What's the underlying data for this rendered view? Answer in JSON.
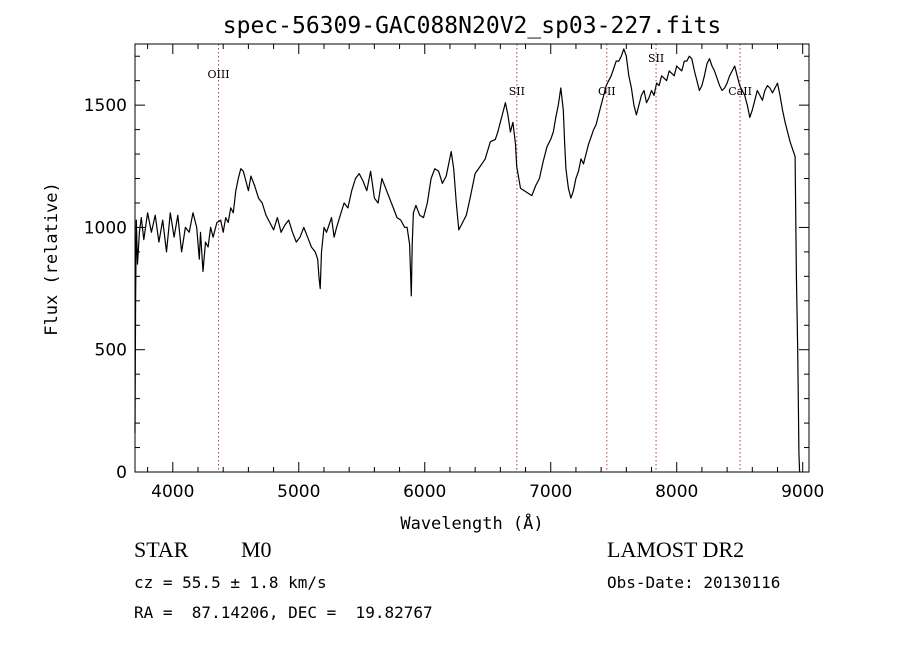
{
  "chart_data": {
    "type": "line",
    "title": "spec-56309-GAC088N20V2_sp03-227.fits",
    "xlabel": "Wavelength (Å)",
    "ylabel": "Flux (relative)",
    "xlim": [
      3700,
      9050
    ],
    "ylim": [
      0,
      1750
    ],
    "xticks": [
      4000,
      5000,
      6000,
      7000,
      8000,
      9000
    ],
    "yticks": [
      0,
      500,
      1000,
      1500
    ],
    "grid": false,
    "spectral_lines": [
      {
        "label": "OIII",
        "wavelength": 4363
      },
      {
        "label": "SII",
        "wavelength": 6731
      },
      {
        "label": "OII",
        "wavelength": 7445
      },
      {
        "label": "SII",
        "wavelength": 7836
      },
      {
        "label": "CaII",
        "wavelength": 8503
      }
    ],
    "series": [
      {
        "x": [
          3700,
          3705,
          3710,
          3720,
          3735,
          3750,
          3770,
          3800,
          3830,
          3860,
          3890,
          3920,
          3950,
          3980,
          4010,
          4040,
          4070,
          4100,
          4130,
          4160,
          4190,
          4210,
          4220,
          4240,
          4260,
          4280,
          4300,
          4320,
          4350,
          4380,
          4400,
          4420,
          4440,
          4460,
          4480,
          4500,
          4520,
          4540,
          4560,
          4580,
          4600,
          4620,
          4650,
          4680,
          4710,
          4740,
          4770,
          4800,
          4830,
          4860,
          4890,
          4920,
          4950,
          4980,
          5010,
          5040,
          5070,
          5100,
          5130,
          5150,
          5160,
          5170,
          5180,
          5200,
          5220,
          5240,
          5260,
          5280,
          5300,
          5330,
          5360,
          5390,
          5420,
          5450,
          5480,
          5510,
          5540,
          5570,
          5600,
          5630,
          5660,
          5690,
          5720,
          5750,
          5780,
          5810,
          5840,
          5860,
          5880,
          5893,
          5900,
          5910,
          5930,
          5960,
          5990,
          6020,
          6050,
          6080,
          6110,
          6140,
          6170,
          6190,
          6210,
          6230,
          6250,
          6270,
          6300,
          6330,
          6360,
          6400,
          6440,
          6480,
          6520,
          6560,
          6580,
          6600,
          6620,
          6640,
          6660,
          6680,
          6700,
          6720,
          6730,
          6760,
          6790,
          6820,
          6850,
          6880,
          6910,
          6940,
          6970,
          7000,
          7020,
          7040,
          7060,
          7080,
          7100,
          7110,
          7120,
          7140,
          7160,
          7180,
          7200,
          7220,
          7240,
          7260,
          7280,
          7300,
          7320,
          7340,
          7360,
          7380,
          7400,
          7420,
          7440,
          7460,
          7480,
          7500,
          7520,
          7540,
          7560,
          7580,
          7600,
          7620,
          7640,
          7660,
          7680,
          7700,
          7720,
          7740,
          7760,
          7780,
          7800,
          7820,
          7840,
          7860,
          7880,
          7900,
          7920,
          7940,
          7960,
          7980,
          8000,
          8020,
          8040,
          8060,
          8080,
          8100,
          8120,
          8140,
          8160,
          8180,
          8200,
          8220,
          8240,
          8260,
          8280,
          8300,
          8320,
          8340,
          8360,
          8380,
          8400,
          8420,
          8440,
          8460,
          8480,
          8500,
          8520,
          8540,
          8560,
          8580,
          8600,
          8620,
          8640,
          8660,
          8680,
          8700,
          8720,
          8740,
          8760,
          8780,
          8800,
          8820,
          8840,
          8860,
          8880,
          8900,
          8920,
          8940,
          8950,
          8960,
          8965,
          8970,
          8975,
          8980
        ],
        "values": [
          160,
          700,
          1030,
          850,
          980,
          1040,
          950,
          1060,
          980,
          1050,
          940,
          1030,
          900,
          1060,
          960,
          1050,
          900,
          1000,
          980,
          1060,
          1000,
          870,
          980,
          820,
          940,
          920,
          1000,
          960,
          1020,
          1030,
          980,
          1040,
          1020,
          1080,
          1060,
          1150,
          1200,
          1240,
          1230,
          1190,
          1150,
          1210,
          1170,
          1120,
          1100,
          1050,
          1020,
          990,
          1040,
          980,
          1010,
          1030,
          980,
          940,
          960,
          1000,
          960,
          920,
          900,
          870,
          800,
          750,
          900,
          1000,
          980,
          1010,
          1040,
          960,
          1000,
          1050,
          1100,
          1080,
          1150,
          1200,
          1220,
          1190,
          1150,
          1230,
          1120,
          1100,
          1200,
          1160,
          1120,
          1080,
          1040,
          1030,
          1000,
          1000,
          930,
          720,
          930,
          1060,
          1090,
          1050,
          1040,
          1100,
          1200,
          1240,
          1230,
          1180,
          1210,
          1260,
          1310,
          1240,
          1100,
          990,
          1020,
          1050,
          1120,
          1220,
          1250,
          1280,
          1350,
          1360,
          1390,
          1430,
          1470,
          1510,
          1460,
          1390,
          1430,
          1340,
          1250,
          1160,
          1150,
          1140,
          1130,
          1170,
          1200,
          1270,
          1330,
          1360,
          1390,
          1450,
          1500,
          1570,
          1480,
          1350,
          1240,
          1160,
          1120,
          1150,
          1200,
          1230,
          1280,
          1260,
          1300,
          1340,
          1370,
          1400,
          1420,
          1460,
          1500,
          1540,
          1580,
          1600,
          1620,
          1650,
          1680,
          1680,
          1700,
          1730,
          1700,
          1620,
          1570,
          1500,
          1460,
          1500,
          1540,
          1560,
          1510,
          1530,
          1560,
          1540,
          1590,
          1580,
          1620,
          1610,
          1600,
          1640,
          1630,
          1620,
          1660,
          1650,
          1640,
          1680,
          1680,
          1700,
          1690,
          1640,
          1600,
          1560,
          1580,
          1620,
          1670,
          1690,
          1660,
          1640,
          1610,
          1580,
          1560,
          1570,
          1590,
          1620,
          1640,
          1660,
          1620,
          1580,
          1560,
          1540,
          1500,
          1450,
          1480,
          1520,
          1560,
          1540,
          1520,
          1560,
          1580,
          1570,
          1550,
          1570,
          1590,
          1540,
          1480,
          1430,
          1390,
          1350,
          1320,
          1290,
          800,
          500,
          300,
          80,
          0,
          0
        ]
      }
    ]
  },
  "info": {
    "object_class": "STAR",
    "subclass": "M0",
    "survey": "LAMOST DR2",
    "cz": "cz = 55.5 ± 1.8 km/s",
    "obs_date": "Obs-Date: 20130116",
    "coords": "RA =  87.14206, DEC =  19.82767"
  }
}
